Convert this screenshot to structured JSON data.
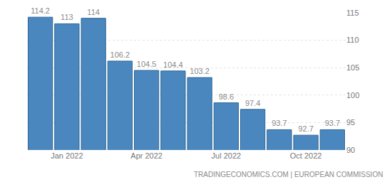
{
  "chart_data": {
    "type": "bar",
    "categories": [
      null,
      "Jan 2022",
      null,
      null,
      "Apr 2022",
      null,
      null,
      "Jul 2022",
      null,
      null,
      "Oct 2022",
      null
    ],
    "values": [
      114.2,
      113,
      114,
      106.2,
      104.5,
      104.4,
      103.2,
      98.6,
      97.4,
      93.7,
      92.7,
      93.7
    ],
    "value_labels": [
      "114.2",
      "113",
      "114",
      "106.2",
      "104.5",
      "104.4",
      "103.2",
      "98.6",
      "97.4",
      "93.7",
      "92.7",
      "93.7"
    ],
    "color": "#4a87be",
    "data_labels": true,
    "ylim": [
      90,
      115
    ],
    "yticks": [
      90,
      95,
      100,
      105,
      110,
      115
    ],
    "grid": true,
    "source": "TRADINGECONOMICS.COM | EUROPEAN COMMISSION"
  }
}
